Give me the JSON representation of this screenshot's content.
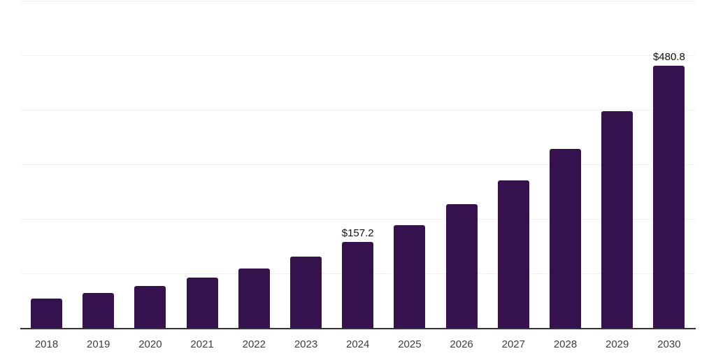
{
  "chart": {
    "background_color": "#ffffff",
    "bar_color": "#35124d",
    "grid_color": "#f0f0f0",
    "axis_color": "#333333",
    "tick_label_color": "#3d3d3d",
    "value_label_color": "#111111"
  },
  "chart_data": {
    "type": "bar",
    "title": "",
    "xlabel": "",
    "ylabel": "",
    "categories": [
      "2018",
      "2019",
      "2020",
      "2021",
      "2022",
      "2023",
      "2024",
      "2025",
      "2026",
      "2027",
      "2028",
      "2029",
      "2030"
    ],
    "values": [
      54,
      64,
      77,
      92,
      109,
      131,
      157.2,
      188,
      227,
      271,
      328,
      397,
      480.8
    ],
    "value_labels": {
      "2024": "$157.2",
      "2030": "$480.8"
    },
    "unit_prefix": "$",
    "ylim": [
      0,
      600
    ],
    "grid": true,
    "gridline_interval": 100,
    "y_axis_tick_labels_visible": false,
    "legend": "none"
  }
}
